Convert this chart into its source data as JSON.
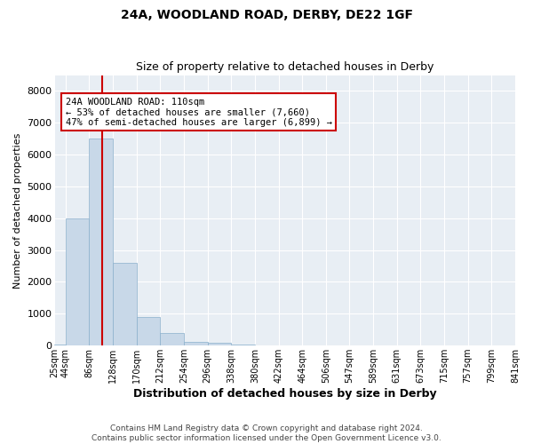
{
  "title1": "24A, WOODLAND ROAD, DERBY, DE22 1GF",
  "title2": "Size of property relative to detached houses in Derby",
  "xlabel": "Distribution of detached houses by size in Derby",
  "ylabel": "Number of detached properties",
  "footnote": "Contains HM Land Registry data © Crown copyright and database right 2024.\nContains public sector information licensed under the Open Government Licence v3.0.",
  "bin_edges": [
    25,
    44,
    86,
    128,
    170,
    212,
    254,
    296,
    338,
    380,
    422,
    464,
    506,
    547,
    589,
    631,
    673,
    715,
    757,
    799,
    841
  ],
  "bin_labels": [
    "25sqm",
    "44sqm",
    "86sqm",
    "128sqm",
    "170sqm",
    "212sqm",
    "254sqm",
    "296sqm",
    "338sqm",
    "380sqm",
    "422sqm",
    "464sqm",
    "506sqm",
    "547sqm",
    "589sqm",
    "631sqm",
    "673sqm",
    "715sqm",
    "757sqm",
    "799sqm",
    "841sqm"
  ],
  "bar_heights": [
    30,
    4000,
    6500,
    2600,
    900,
    400,
    120,
    80,
    35,
    15,
    8,
    5,
    4,
    3,
    2,
    2,
    1,
    1,
    1,
    1
  ],
  "bar_color": "#c8d8e8",
  "bar_edge_color": "#8ab0cc",
  "property_size": 110,
  "vline_color": "#cc0000",
  "annotation_line1": "24A WOODLAND ROAD: 110sqm",
  "annotation_line2": "← 53% of detached houses are smaller (7,660)",
  "annotation_line3": "47% of semi-detached houses are larger (6,899) →",
  "annotation_box_color": "#cc0000",
  "bg_color": "#ffffff",
  "plot_bg_color": "#e8eef4",
  "grid_color": "#ffffff",
  "ylim": [
    0,
    8500
  ],
  "yticks": [
    0,
    1000,
    2000,
    3000,
    4000,
    5000,
    6000,
    7000,
    8000
  ],
  "footnote_color": "#444444"
}
